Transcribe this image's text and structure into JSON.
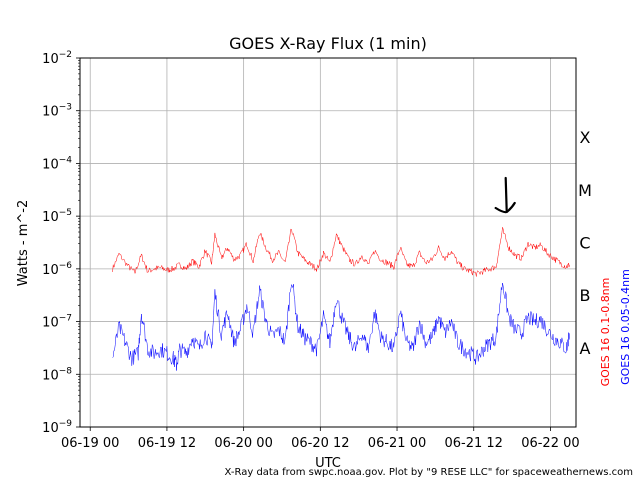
{
  "chart_data": {
    "type": "line",
    "title": "GOES X-Ray Flux (1 min)",
    "xlabel": "UTC",
    "ylabel": "Watts - m^-2",
    "y_scale": "log",
    "ylim": [
      "1e-9",
      "1e-2"
    ],
    "y_ticks": [
      {
        "base": "10",
        "exp": "−9"
      },
      {
        "base": "10",
        "exp": "−8"
      },
      {
        "base": "10",
        "exp": "−7"
      },
      {
        "base": "10",
        "exp": "−6"
      },
      {
        "base": "10",
        "exp": "−5"
      },
      {
        "base": "10",
        "exp": "−4"
      },
      {
        "base": "10",
        "exp": "−3"
      },
      {
        "base": "10",
        "exp": "−2"
      }
    ],
    "x_ticks": [
      "06-19 00",
      "06-19 12",
      "06-20 00",
      "06-20 12",
      "06-21 00",
      "06-21 12",
      "06-22 00"
    ],
    "x_range_hours": [
      -1.6,
      76
    ],
    "grid": true,
    "flare_classes": [
      "A",
      "C",
      "M",
      "X",
      "B"
    ],
    "flare_class_order": [
      "A",
      "B",
      "C",
      "M",
      "X"
    ],
    "series": [
      {
        "name": "GOES 16 0.1-0.8nm",
        "color": "#ff0000",
        "points": [
          [
            3.5,
            1e-06
          ],
          [
            4.5,
            1.9e-06
          ],
          [
            6,
            1.1e-06
          ],
          [
            7,
            8.5e-07
          ],
          [
            8,
            1.8e-06
          ],
          [
            9,
            9e-07
          ],
          [
            10,
            1e-06
          ],
          [
            11,
            1.05e-06
          ],
          [
            12,
            9.5e-07
          ],
          [
            13,
            1e-06
          ],
          [
            14,
            1.2e-06
          ],
          [
            15,
            1e-06
          ],
          [
            16,
            1.4e-06
          ],
          [
            17,
            1.1e-06
          ],
          [
            18,
            2.2e-06
          ],
          [
            19,
            1.3e-06
          ],
          [
            19.5,
            4.5e-06
          ],
          [
            20.5,
            1.6e-06
          ],
          [
            21.5,
            2.5e-06
          ],
          [
            22.5,
            1.5e-06
          ],
          [
            23.5,
            1.8e-06
          ],
          [
            24.5,
            3e-06
          ],
          [
            25.5,
            1.4e-06
          ],
          [
            26.5,
            5e-06
          ],
          [
            27.5,
            2.5e-06
          ],
          [
            28.5,
            1.5e-06
          ],
          [
            29.5,
            2e-06
          ],
          [
            30.5,
            1.3e-06
          ],
          [
            31.5,
            5.8e-06
          ],
          [
            32.5,
            2e-06
          ],
          [
            33.5,
            1.5e-06
          ],
          [
            34.5,
            1.2e-06
          ],
          [
            35.5,
            1e-06
          ],
          [
            36.5,
            2e-06
          ],
          [
            37.5,
            1.3e-06
          ],
          [
            38.5,
            4.5e-06
          ],
          [
            39.5,
            2.5e-06
          ],
          [
            40.5,
            1.5e-06
          ],
          [
            41.5,
            1.2e-06
          ],
          [
            42.5,
            1.8e-06
          ],
          [
            43.5,
            1.2e-06
          ],
          [
            44.5,
            2.2e-06
          ],
          [
            45.5,
            1.5e-06
          ],
          [
            46.5,
            1.3e-06
          ],
          [
            47.5,
            1.1e-06
          ],
          [
            48.5,
            2.5e-06
          ],
          [
            49.5,
            1.2e-06
          ],
          [
            50.5,
            1.1e-06
          ],
          [
            51.5,
            2e-06
          ],
          [
            52.5,
            1.3e-06
          ],
          [
            53.5,
            1.5e-06
          ],
          [
            54.5,
            2.5e-06
          ],
          [
            55.5,
            1.6e-06
          ],
          [
            56.5,
            2.2e-06
          ],
          [
            57.5,
            1.3e-06
          ],
          [
            58.5,
            1e-06
          ],
          [
            59.5,
            9e-07
          ],
          [
            60.5,
            8e-07
          ],
          [
            61.5,
            9e-07
          ],
          [
            62.5,
            1e-06
          ],
          [
            63.5,
            1.1e-06
          ],
          [
            64.5,
            5.5e-06
          ],
          [
            65.5,
            2.5e-06
          ],
          [
            66.5,
            1.8e-06
          ],
          [
            67.5,
            1.6e-06
          ],
          [
            68.5,
            3e-06
          ],
          [
            69.5,
            2.5e-06
          ],
          [
            70.5,
            2.8e-06
          ],
          [
            71.5,
            2e-06
          ],
          [
            72.5,
            1.6e-06
          ],
          [
            73.5,
            1.3e-06
          ],
          [
            74.5,
            1.1e-06
          ],
          [
            75,
            1.2e-06
          ]
        ]
      },
      {
        "name": "GOES 16 0.05-0.4nm",
        "color": "#0000ff",
        "points": [
          [
            3.5,
            2e-08
          ],
          [
            4.5,
            8e-08
          ],
          [
            5.5,
            4e-08
          ],
          [
            6.5,
            2e-08
          ],
          [
            7.5,
            2.5e-08
          ],
          [
            8,
            1.5e-07
          ],
          [
            9,
            3e-08
          ],
          [
            10,
            2.5e-08
          ],
          [
            11,
            3e-08
          ],
          [
            12,
            2.5e-08
          ],
          [
            13,
            2e-08
          ],
          [
            13.5,
            1.5e-08
          ],
          [
            14,
            3e-08
          ],
          [
            15,
            2.5e-08
          ],
          [
            16,
            5e-08
          ],
          [
            17,
            3e-08
          ],
          [
            18,
            6e-08
          ],
          [
            19,
            3e-08
          ],
          [
            19.5,
            3.5e-07
          ],
          [
            20.5,
            6e-08
          ],
          [
            21.5,
            1.5e-07
          ],
          [
            22.5,
            4e-08
          ],
          [
            23.5,
            7e-08
          ],
          [
            24.5,
            2e-07
          ],
          [
            25.5,
            6e-08
          ],
          [
            26.5,
            4e-07
          ],
          [
            27.5,
            1e-07
          ],
          [
            28.5,
            5e-08
          ],
          [
            29.5,
            7e-08
          ],
          [
            30.5,
            4e-08
          ],
          [
            31.5,
            7e-07
          ],
          [
            32.5,
            8e-08
          ],
          [
            33.5,
            5e-08
          ],
          [
            34.5,
            4e-08
          ],
          [
            35.5,
            3e-08
          ],
          [
            36.5,
            1.2e-07
          ],
          [
            37.5,
            4e-08
          ],
          [
            38.5,
            3e-07
          ],
          [
            39.5,
            1e-07
          ],
          [
            40.5,
            5e-08
          ],
          [
            41.5,
            3e-08
          ],
          [
            42.5,
            6e-08
          ],
          [
            43.5,
            3e-08
          ],
          [
            44.5,
            1.5e-07
          ],
          [
            45.5,
            5e-08
          ],
          [
            46.5,
            4e-08
          ],
          [
            47.5,
            3e-08
          ],
          [
            48.5,
            1.5e-07
          ],
          [
            49.5,
            4e-08
          ],
          [
            50.5,
            3e-08
          ],
          [
            51.5,
            1e-07
          ],
          [
            52.5,
            4e-08
          ],
          [
            53.5,
            5e-08
          ],
          [
            54.5,
            1.2e-07
          ],
          [
            55.5,
            6e-08
          ],
          [
            56.5,
            1e-07
          ],
          [
            57.5,
            4e-08
          ],
          [
            58.5,
            3e-08
          ],
          [
            59.5,
            2.5e-08
          ],
          [
            60.5,
            2e-08
          ],
          [
            61.5,
            3e-08
          ],
          [
            62.5,
            4e-08
          ],
          [
            63.5,
            5e-08
          ],
          [
            64.5,
            6e-07
          ],
          [
            65.5,
            1.2e-07
          ],
          [
            66.5,
            7e-08
          ],
          [
            67.5,
            6e-08
          ],
          [
            68.5,
            1.2e-07
          ],
          [
            69.5,
            1e-07
          ],
          [
            70.5,
            1.1e-07
          ],
          [
            71.5,
            7e-08
          ],
          [
            72.5,
            5e-08
          ],
          [
            73.5,
            4e-08
          ],
          [
            74.5,
            3e-08
          ],
          [
            75,
            6e-08
          ]
        ]
      }
    ],
    "arrow_at_hours": 65,
    "credit": "X-Ray data from swpc.noaa.gov. Plot by \"9 RESE LLC\" for spaceweathernews.com"
  }
}
